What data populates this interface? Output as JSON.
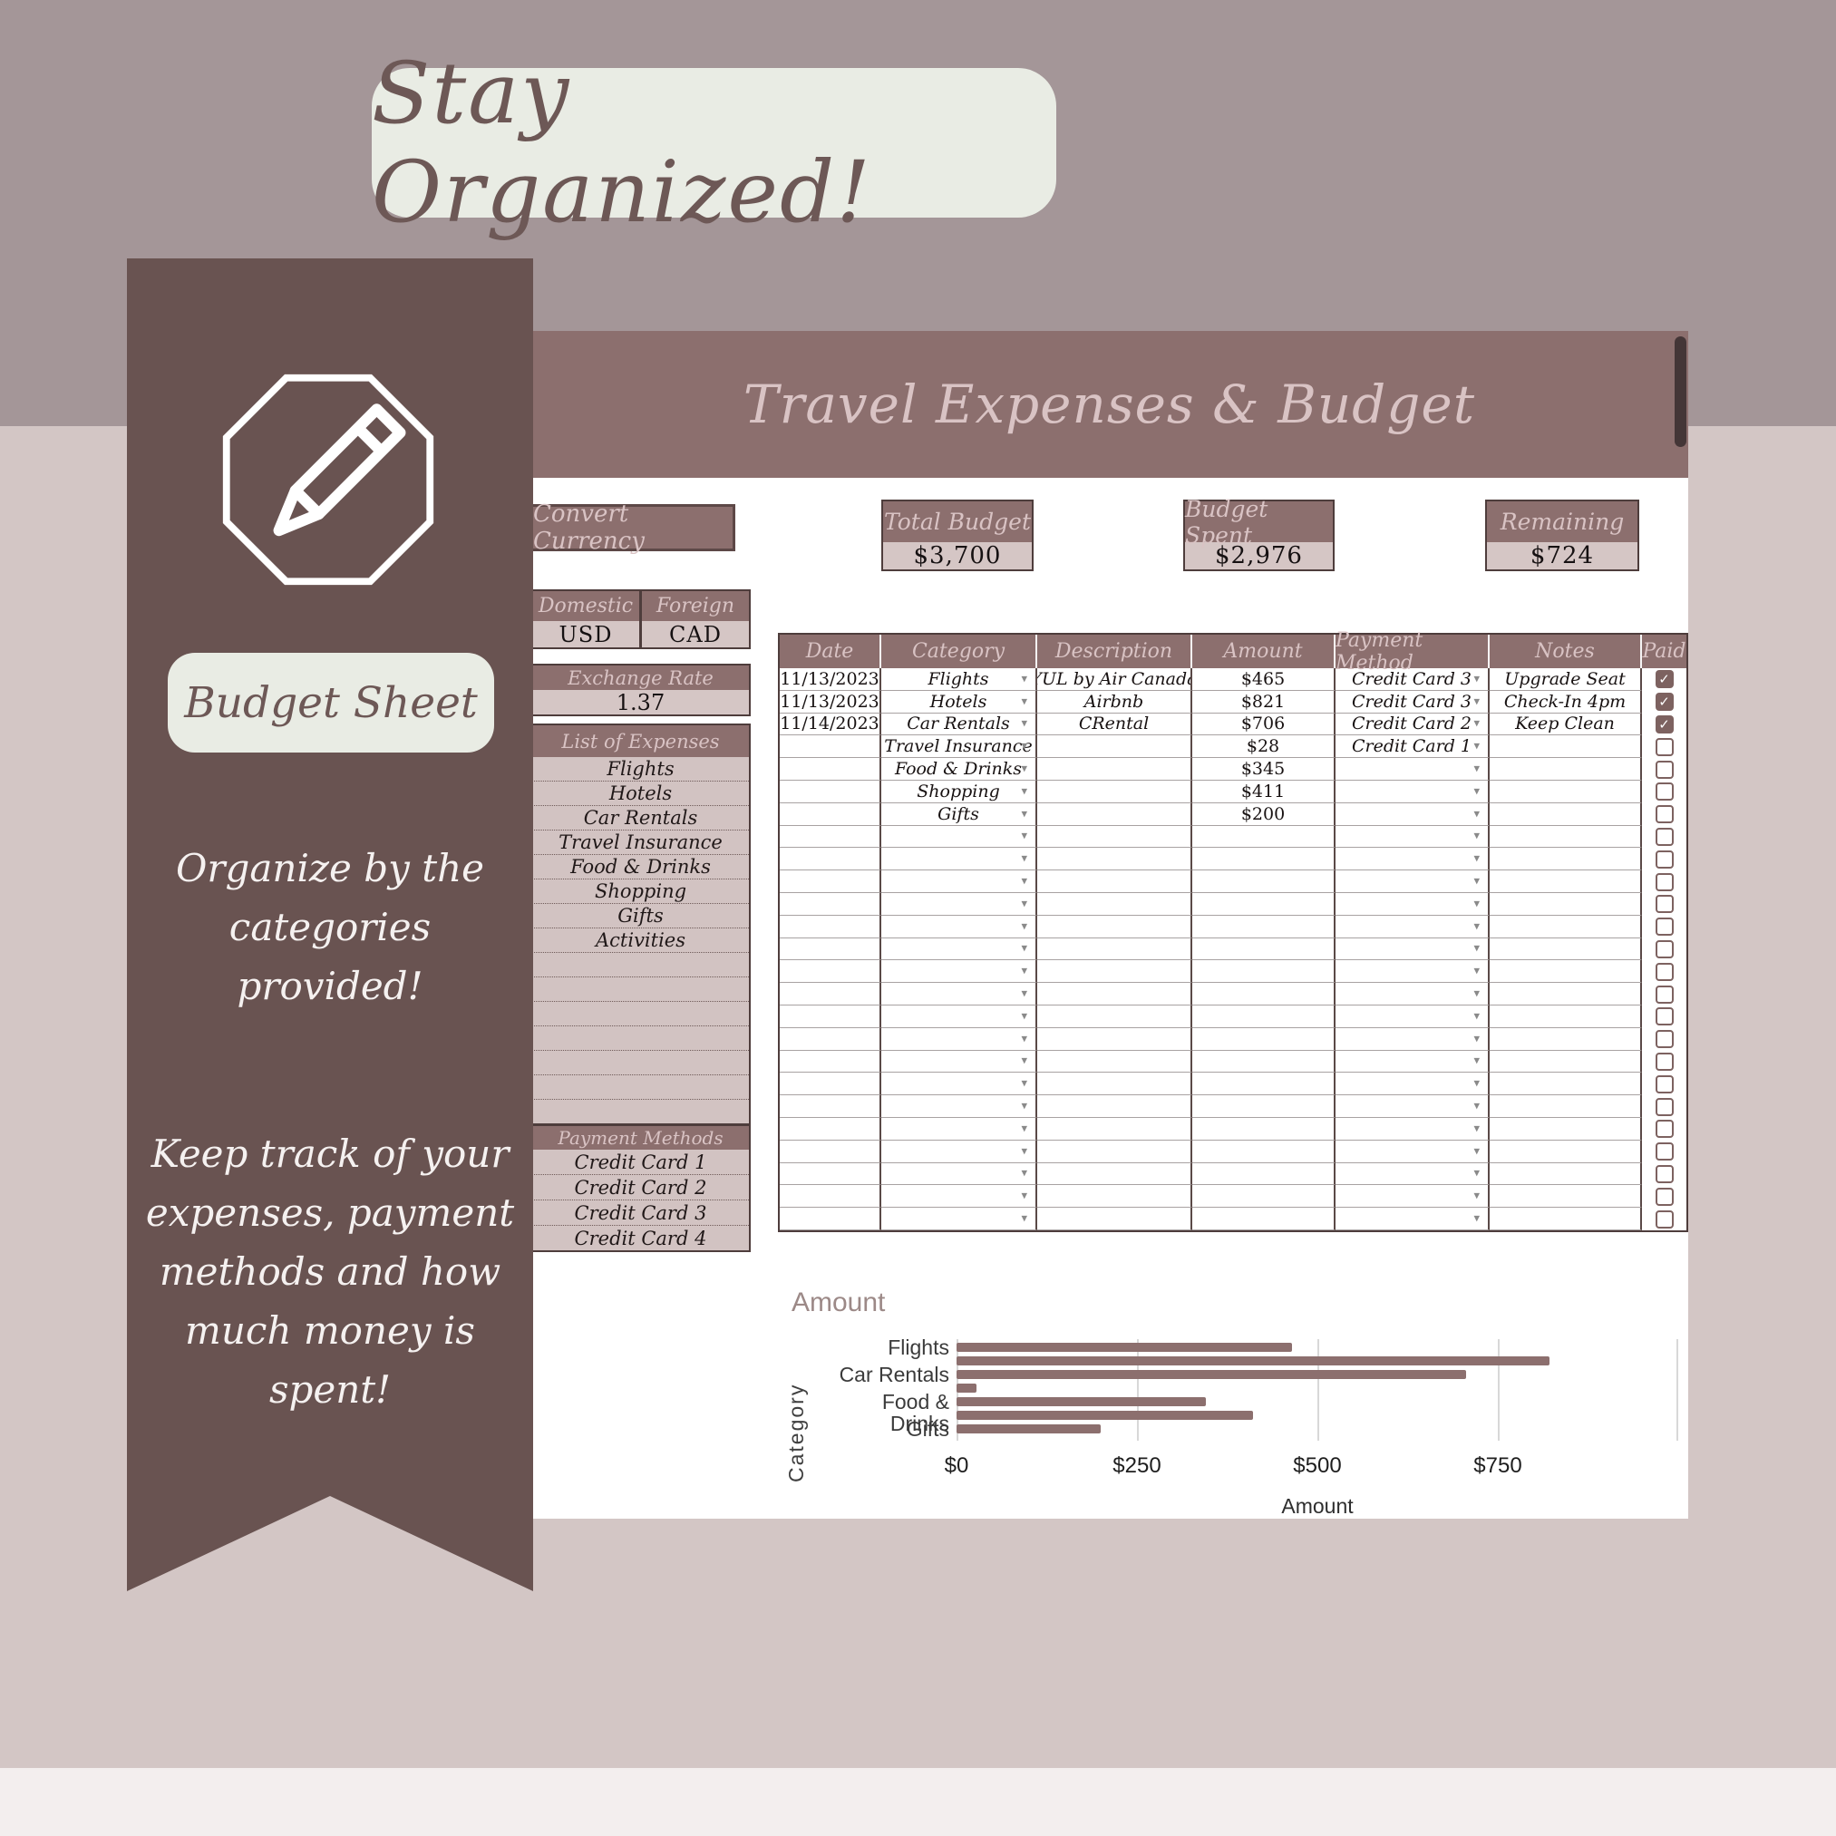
{
  "page": {
    "title": "Stay Organized!"
  },
  "ribbon": {
    "label": "Budget Sheet",
    "line1": "Organize by the categories provided!",
    "line2": "Keep track of your expenses, payment methods and how much money is spent!"
  },
  "sheet": {
    "title": "Travel Expenses & Budget",
    "convert_button": "Convert Currency",
    "stats": [
      {
        "label": "Total Budget",
        "value": "$3,700"
      },
      {
        "label": "Budget Spent",
        "value": "$2,976"
      },
      {
        "label": "Remaining",
        "value": "$724"
      }
    ],
    "currency": {
      "domestic_label": "Domestic",
      "foreign_label": "Foreign",
      "domestic_value": "USD",
      "foreign_value": "CAD"
    },
    "exchange_rate": {
      "label": "Exchange Rate",
      "value": "1.37"
    },
    "expense_list": {
      "label": "List of Expenses",
      "items": [
        "Flights",
        "Hotels",
        "Car Rentals",
        "Travel Insurance",
        "Food & Drinks",
        "Shopping",
        "Gifts",
        "Activities"
      ],
      "empty_rows": 7
    },
    "payment_methods": {
      "label": "Payment Methods",
      "items": [
        "Credit Card 1",
        "Credit Card 2",
        "Credit Card 3",
        "Credit Card 4"
      ]
    },
    "table": {
      "headers": [
        "Date",
        "Category",
        "Description",
        "Amount",
        "Payment Method",
        "Notes",
        "Paid"
      ],
      "rows": [
        {
          "date": "11/13/2023",
          "category": "Flights",
          "description": "YUL by Air Canada",
          "amount": "$465",
          "payment": "Credit Card 3",
          "notes": "Upgrade Seat",
          "paid": true
        },
        {
          "date": "11/13/2023",
          "category": "Hotels",
          "description": "Airbnb",
          "amount": "$821",
          "payment": "Credit Card 3",
          "notes": "Check-In 4pm",
          "paid": true
        },
        {
          "date": "11/14/2023",
          "category": "Car Rentals",
          "description": "CRental",
          "amount": "$706",
          "payment": "Credit Card 2",
          "notes": "Keep Clean",
          "paid": true
        },
        {
          "date": "",
          "category": "Travel Insurance",
          "description": "",
          "amount": "$28",
          "payment": "Credit Card 1",
          "notes": "",
          "paid": false
        },
        {
          "date": "",
          "category": "Food & Drinks",
          "description": "",
          "amount": "$345",
          "payment": "",
          "notes": "",
          "paid": false
        },
        {
          "date": "",
          "category": "Shopping",
          "description": "",
          "amount": "$411",
          "payment": "",
          "notes": "",
          "paid": false
        },
        {
          "date": "",
          "category": "Gifts",
          "description": "",
          "amount": "$200",
          "payment": "",
          "notes": "",
          "paid": false
        }
      ],
      "empty_row_count": 18
    }
  },
  "chart_data": {
    "type": "bar",
    "orientation": "horizontal",
    "title": "Amount",
    "xlabel": "Amount",
    "ylabel": "Category",
    "categories": [
      "Flights",
      "Hotels",
      "Car Rentals",
      "Travel Insurance",
      "Food & Drinks",
      "Shopping",
      "Gifts"
    ],
    "values": [
      465,
      821,
      706,
      28,
      345,
      411,
      200
    ],
    "visible_category_labels": [
      "Flights",
      "Car Rentals",
      "Food & Drinks",
      "Gifts"
    ],
    "tick_labels": [
      "$0",
      "$250",
      "$500",
      "$750"
    ],
    "tick_values": [
      0,
      250,
      500,
      750
    ],
    "xlim": [
      0,
      1000
    ],
    "grid": true,
    "legend": false,
    "bar_color": "#8c6f6e"
  },
  "colors": {
    "accent": "#8c6f6e",
    "ribbon": "#695351",
    "header_text": "#d9c3c4",
    "cell_bg": "#d5c6c5",
    "checkbox": "#7d6260",
    "bg_top": "#a49698",
    "bg_main": "#d3c6c5"
  }
}
